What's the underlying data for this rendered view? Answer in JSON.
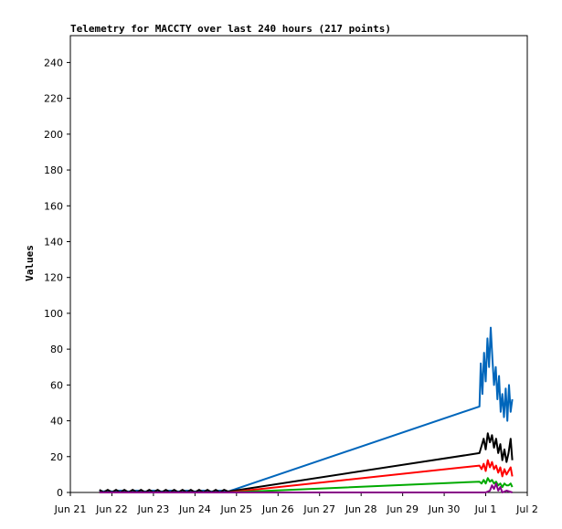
{
  "chart_data": {
    "type": "line",
    "title": "Telemetry for MACCTY over last 240 hours (217 points)",
    "xlabel": "",
    "ylabel": "Values",
    "xlim": [
      0,
      11
    ],
    "ylim": [
      0,
      255
    ],
    "x_tick_labels": [
      "Jun 21",
      "Jun 22",
      "Jun 23",
      "Jun 24",
      "Jun 25",
      "Jun 26",
      "Jun 27",
      "Jun 28",
      "Jun 29",
      "Jun 30",
      "Jul 1",
      "Jul 2"
    ],
    "y_ticks": [
      0,
      20,
      40,
      60,
      80,
      100,
      120,
      140,
      160,
      180,
      200,
      220,
      240
    ],
    "grid": false,
    "legend": "none",
    "series": [
      {
        "color": "#0066bb",
        "x": [
          0.7,
          0.8,
          0.9,
          1.0,
          1.2,
          1.4,
          1.6,
          1.8,
          2.0,
          2.2,
          2.4,
          2.6,
          2.8,
          3.0,
          3.2,
          3.4,
          3.6,
          3.8,
          9.85,
          9.88,
          9.92,
          9.96,
          10.0,
          10.04,
          10.08,
          10.12,
          10.16,
          10.2,
          10.24,
          10.28,
          10.32,
          10.36,
          10.4,
          10.44,
          10.48,
          10.52,
          10.56,
          10.6,
          10.64
        ],
        "values": [
          1,
          0.5,
          1,
          0.5,
          1,
          0.5,
          1,
          0.5,
          1,
          0.5,
          1,
          0.5,
          1,
          0.5,
          1,
          0.5,
          1,
          0.5,
          48,
          72,
          55,
          78,
          62,
          86,
          70,
          92,
          75,
          60,
          70,
          52,
          65,
          45,
          55,
          42,
          58,
          40,
          60,
          45,
          52
        ]
      },
      {
        "color": "#000000",
        "x": [
          0.7,
          0.8,
          0.9,
          1.0,
          1.1,
          1.2,
          1.3,
          1.4,
          1.5,
          1.6,
          1.7,
          1.8,
          1.9,
          2.0,
          2.1,
          2.2,
          2.3,
          2.4,
          2.5,
          2.6,
          2.7,
          2.8,
          2.9,
          3.0,
          3.1,
          3.2,
          3.3,
          3.4,
          3.5,
          3.6,
          3.7,
          3.8,
          9.85,
          9.9,
          9.95,
          10.0,
          10.05,
          10.1,
          10.15,
          10.2,
          10.25,
          10.3,
          10.35,
          10.4,
          10.45,
          10.5,
          10.55,
          10.6,
          10.64
        ],
        "values": [
          1.5,
          0,
          1.5,
          0,
          1.5,
          0,
          1.5,
          0,
          1.5,
          0,
          1.5,
          0,
          1.5,
          0,
          1.5,
          0,
          1.5,
          0,
          1.5,
          0,
          1.5,
          0,
          1.5,
          0,
          1.5,
          0,
          1.5,
          0,
          1.5,
          0,
          1.5,
          0.5,
          22,
          26,
          30,
          24,
          33,
          28,
          32,
          25,
          30,
          22,
          27,
          18,
          24,
          17,
          22,
          30,
          18
        ]
      },
      {
        "color": "#ff0000",
        "x": [
          0.7,
          3.8,
          9.85,
          9.9,
          9.95,
          10.0,
          10.05,
          10.1,
          10.15,
          10.2,
          10.25,
          10.3,
          10.35,
          10.4,
          10.45,
          10.5,
          10.55,
          10.6,
          10.64
        ],
        "values": [
          0,
          0,
          15,
          13,
          16,
          12,
          18,
          14,
          17,
          13,
          15,
          11,
          14,
          9,
          13,
          10,
          12,
          14,
          9
        ]
      },
      {
        "color": "#00aa00",
        "x": [
          0.7,
          3.8,
          9.85,
          9.9,
          9.95,
          10.0,
          10.05,
          10.1,
          10.15,
          10.2,
          10.25,
          10.3,
          10.35,
          10.4,
          10.45,
          10.5,
          10.55,
          10.6,
          10.64
        ],
        "values": [
          0,
          0,
          6,
          5,
          7,
          5,
          8,
          6,
          7,
          5,
          6,
          4,
          5,
          3,
          5,
          4,
          4,
          5,
          3
        ]
      },
      {
        "color": "#880088",
        "x": [
          0.7,
          3.8,
          9.85,
          10.0,
          10.1,
          10.15,
          10.2,
          10.25,
          10.3,
          10.35,
          10.4,
          10.5,
          10.64
        ],
        "values": [
          0,
          0,
          0,
          0,
          1,
          4,
          2,
          5,
          1,
          3,
          0,
          1,
          0
        ]
      }
    ]
  }
}
